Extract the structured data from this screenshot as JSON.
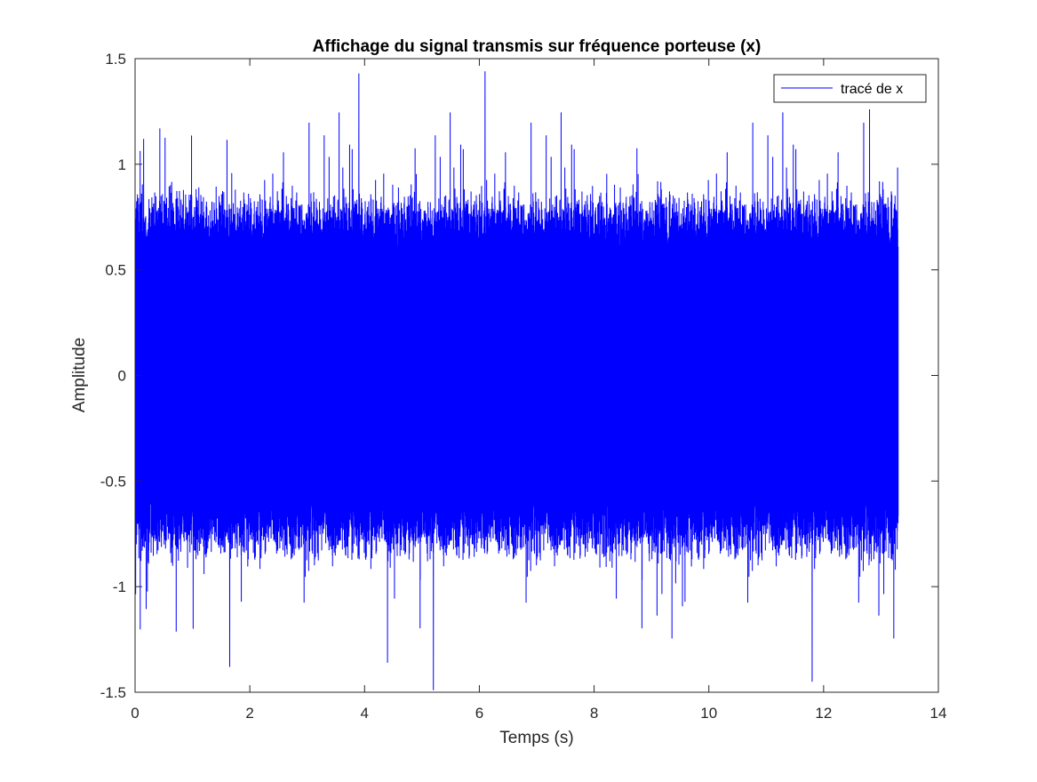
{
  "chart_data": {
    "type": "line",
    "title": "Affichage du signal transmis sur fréquence porteuse (x)",
    "xlabel": "Temps (s)",
    "ylabel": "Amplitude",
    "xlim": [
      0,
      14
    ],
    "ylim": [
      -1.5,
      1.5
    ],
    "xticks": [
      0,
      2,
      4,
      6,
      8,
      10,
      12,
      14
    ],
    "xtick_labels": [
      "0",
      "2",
      "4",
      "6",
      "8",
      "10",
      "12",
      "14"
    ],
    "yticks": [
      1.5,
      1,
      0.5,
      0,
      -0.5,
      -1,
      -1.5
    ],
    "ytick_labels": [
      "1.5",
      "1",
      "0.5",
      "0",
      "-0.5",
      "-1",
      "-1.5"
    ],
    "grid": false,
    "legend_position": "top-right",
    "series": [
      {
        "name": "tracé de x",
        "color": "#0000ff",
        "x_range": [
          0,
          13.3
        ],
        "typical_envelope": [
          -0.75,
          0.75
        ],
        "peak_points": [
          {
            "x": 3.9,
            "y": 1.43
          },
          {
            "x": 6.1,
            "y": 1.44
          },
          {
            "x": 1.65,
            "y": 1.25
          },
          {
            "x": 12.8,
            "y": 1.26
          },
          {
            "x": 0.15,
            "y": 1.12
          },
          {
            "x": 5.2,
            "y": -1.49
          },
          {
            "x": 11.8,
            "y": -1.45
          },
          {
            "x": 1.65,
            "y": -1.38
          },
          {
            "x": 4.4,
            "y": -1.36
          },
          {
            "x": 13.25,
            "y": -0.92
          }
        ]
      }
    ]
  }
}
